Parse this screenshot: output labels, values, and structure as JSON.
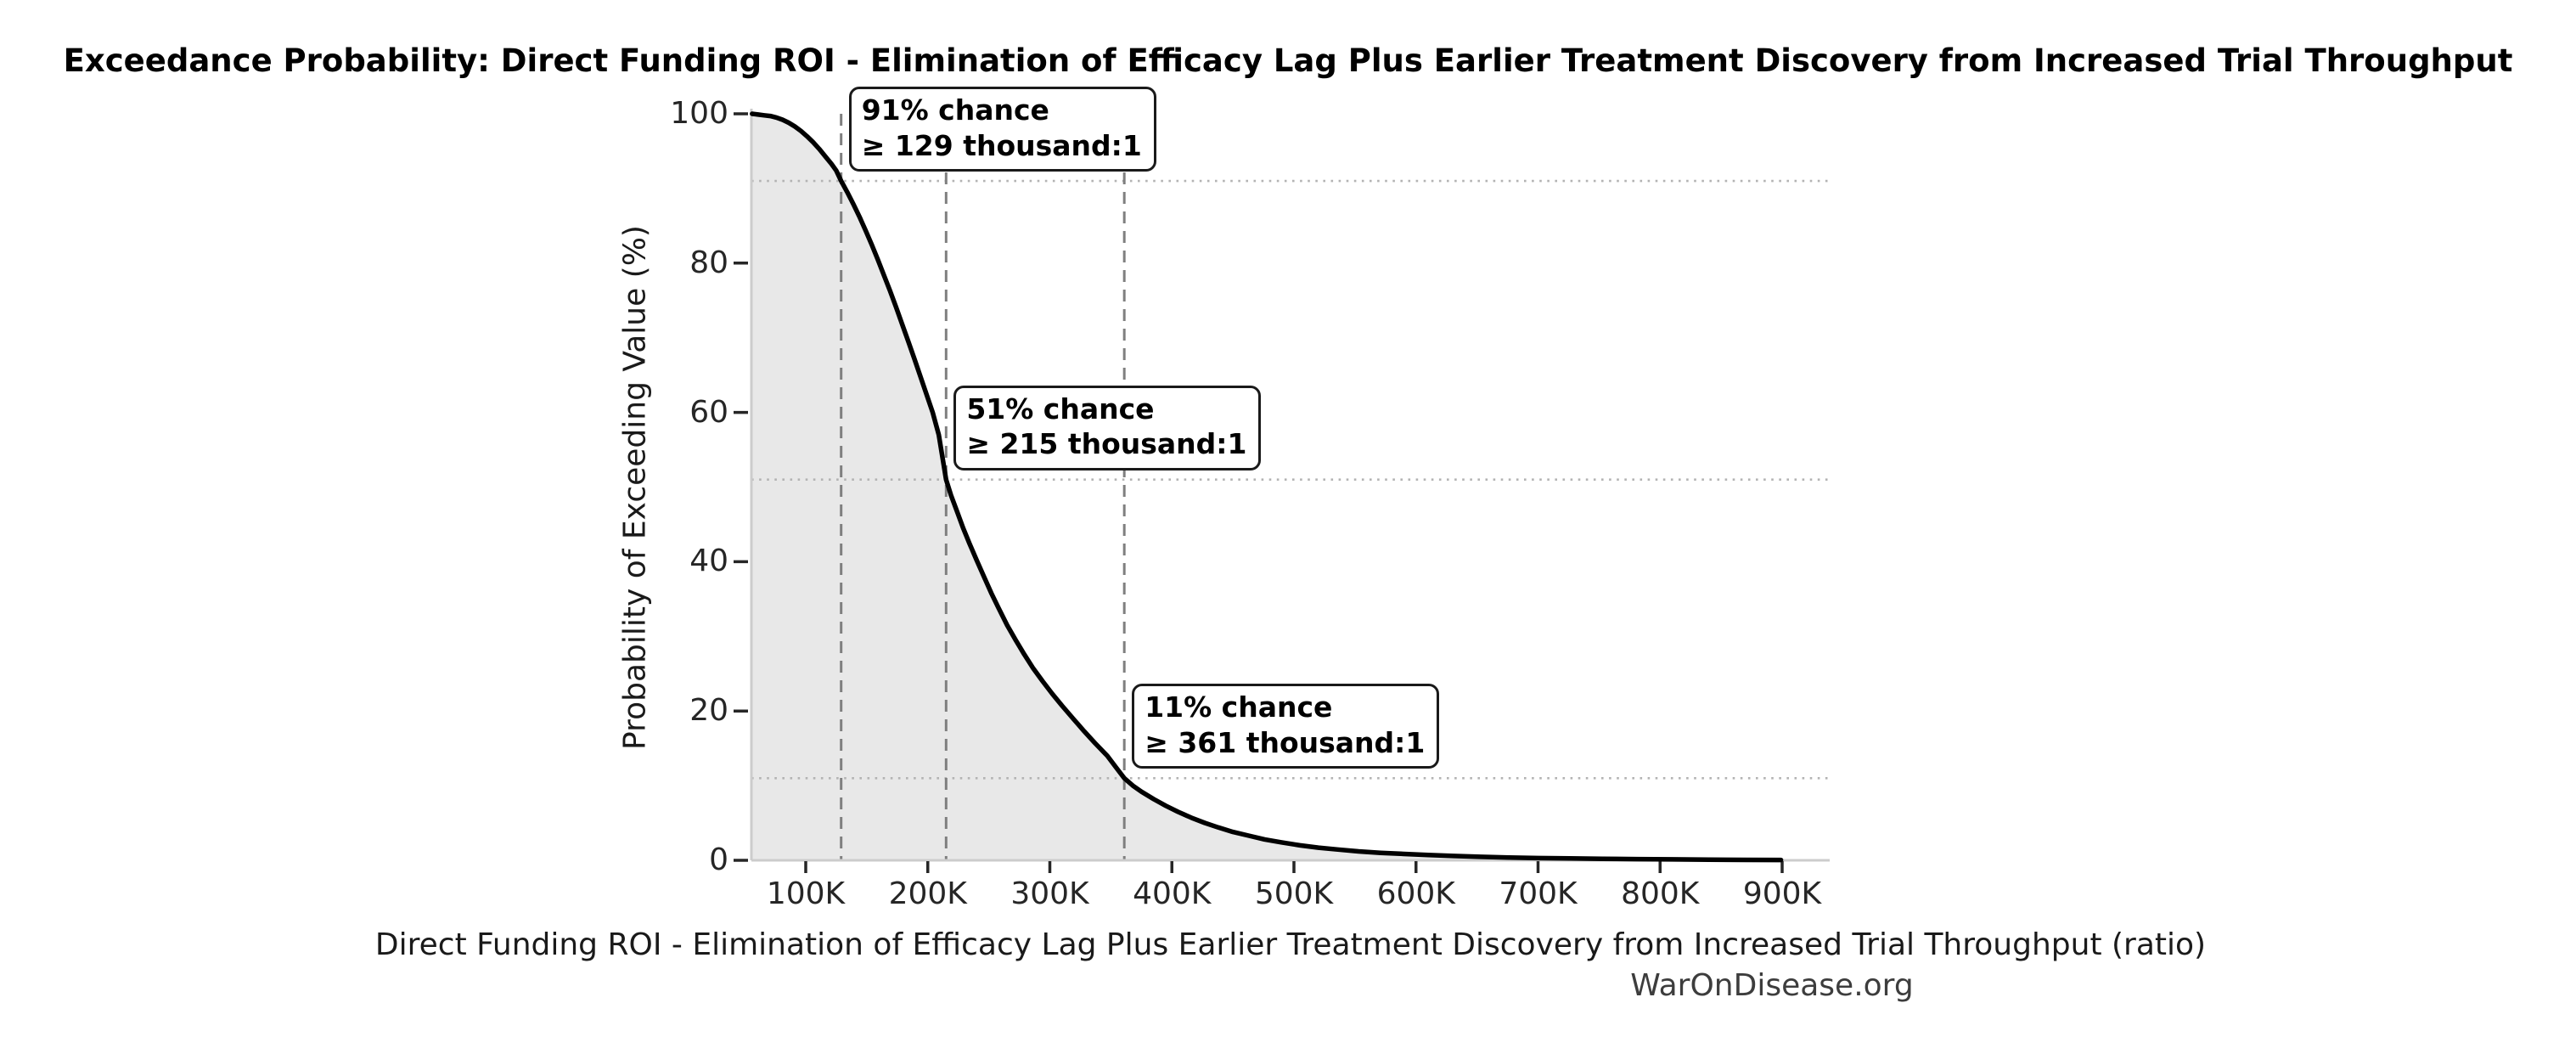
{
  "figure": {
    "title": "Exceedance Probability: Direct Funding ROI - Elimination of Efficacy Lag Plus Earlier Treatment Discovery from Increased Trial Throughput",
    "watermark": "WarOnDisease.org"
  },
  "chart_data": {
    "type": "area",
    "title": "Exceedance Probability: Direct Funding ROI - Elimination of Efficacy Lag Plus Earlier Treatment Discovery from Increased Trial Throughput",
    "xlabel": "Direct Funding ROI - Elimination of Efficacy Lag Plus Earlier Treatment Discovery from Increased Trial Throughput (ratio)",
    "ylabel": "Probability of Exceeding Value (%)",
    "legend": null,
    "grid": "reference lines only",
    "x_unit": "ratio (thousands:1)",
    "xlim_thousands": [
      56,
      939
    ],
    "ylim": [
      0,
      100
    ],
    "x_ticks": {
      "values_thousands": [
        100,
        200,
        300,
        400,
        500,
        600,
        700,
        800,
        900
      ],
      "labels": [
        "100K",
        "200K",
        "300K",
        "400K",
        "500K",
        "600K",
        "700K",
        "800K",
        "900K"
      ]
    },
    "y_ticks": {
      "values_percent": [
        0,
        20,
        40,
        60,
        80,
        100
      ],
      "labels": [
        "0",
        "20",
        "40",
        "60",
        "80",
        "100"
      ]
    },
    "series": [
      {
        "name": "Exceedance probability curve",
        "x_thousands": [
          56,
          61,
          66,
          71,
          76,
          81,
          86,
          91,
          96,
          101,
          106,
          111,
          116,
          121,
          125,
          129,
          134,
          139,
          144,
          149,
          154,
          159,
          164,
          169,
          174,
          179,
          184,
          189,
          194,
          199,
          204,
          209,
          212,
          215,
          219,
          224,
          229,
          234,
          240,
          246,
          252,
          258,
          265,
          272,
          279,
          286,
          294,
          302,
          310,
          319,
          328,
          337,
          347,
          354,
          361,
          368,
          375,
          385,
          395,
          405,
          416,
          427,
          438,
          450,
          463,
          476,
          490,
          505,
          520,
          536,
          553,
          571,
          590,
          610,
          631,
          653,
          676,
          700,
          726,
          753,
          781,
          810,
          840,
          870,
          899
        ],
        "y_percent": [
          100,
          99.9,
          99.8,
          99.7,
          99.5,
          99.2,
          98.8,
          98.3,
          97.7,
          97,
          96.2,
          95.3,
          94.3,
          93.3,
          92.4,
          91,
          89.5,
          87.9,
          86.2,
          84.4,
          82.5,
          80.5,
          78.4,
          76.3,
          74.1,
          71.8,
          69.5,
          67.2,
          64.8,
          62.4,
          60,
          57,
          54,
          51,
          48.9,
          46.7,
          44.5,
          42.5,
          40.2,
          38,
          35.8,
          33.8,
          31.5,
          29.5,
          27.6,
          25.8,
          24,
          22.3,
          20.7,
          19,
          17.3,
          15.7,
          14,
          12.5,
          11,
          10,
          9.2,
          8.2,
          7.3,
          6.5,
          5.7,
          5,
          4.4,
          3.8,
          3.3,
          2.8,
          2.4,
          2,
          1.7,
          1.45,
          1.2,
          1,
          0.85,
          0.7,
          0.58,
          0.47,
          0.38,
          0.3,
          0.25,
          0.2,
          0.16,
          0.12,
          0.09,
          0.06,
          0.04
        ]
      }
    ],
    "annotations": [
      {
        "probability_percent": 91,
        "value_thousands": 129,
        "line1": "91% chance",
        "line2": "≥ 129 thousand:1"
      },
      {
        "probability_percent": 51,
        "value_thousands": 215,
        "line1": "51% chance",
        "line2": "≥ 215 thousand:1"
      },
      {
        "probability_percent": 11,
        "value_thousands": 361,
        "line1": "11% chance",
        "line2": "≥ 361 thousand:1"
      }
    ],
    "colors": {
      "curve": "#000000",
      "area_fill": "#e8e8e8",
      "dashed_vline": "#7f7f7f",
      "dotted_hline": "#b3b3b3",
      "spine": "#cccccc",
      "tick_mark": "#262626",
      "text": "#1a1a1a",
      "watermark": "#3d3d3d"
    }
  }
}
